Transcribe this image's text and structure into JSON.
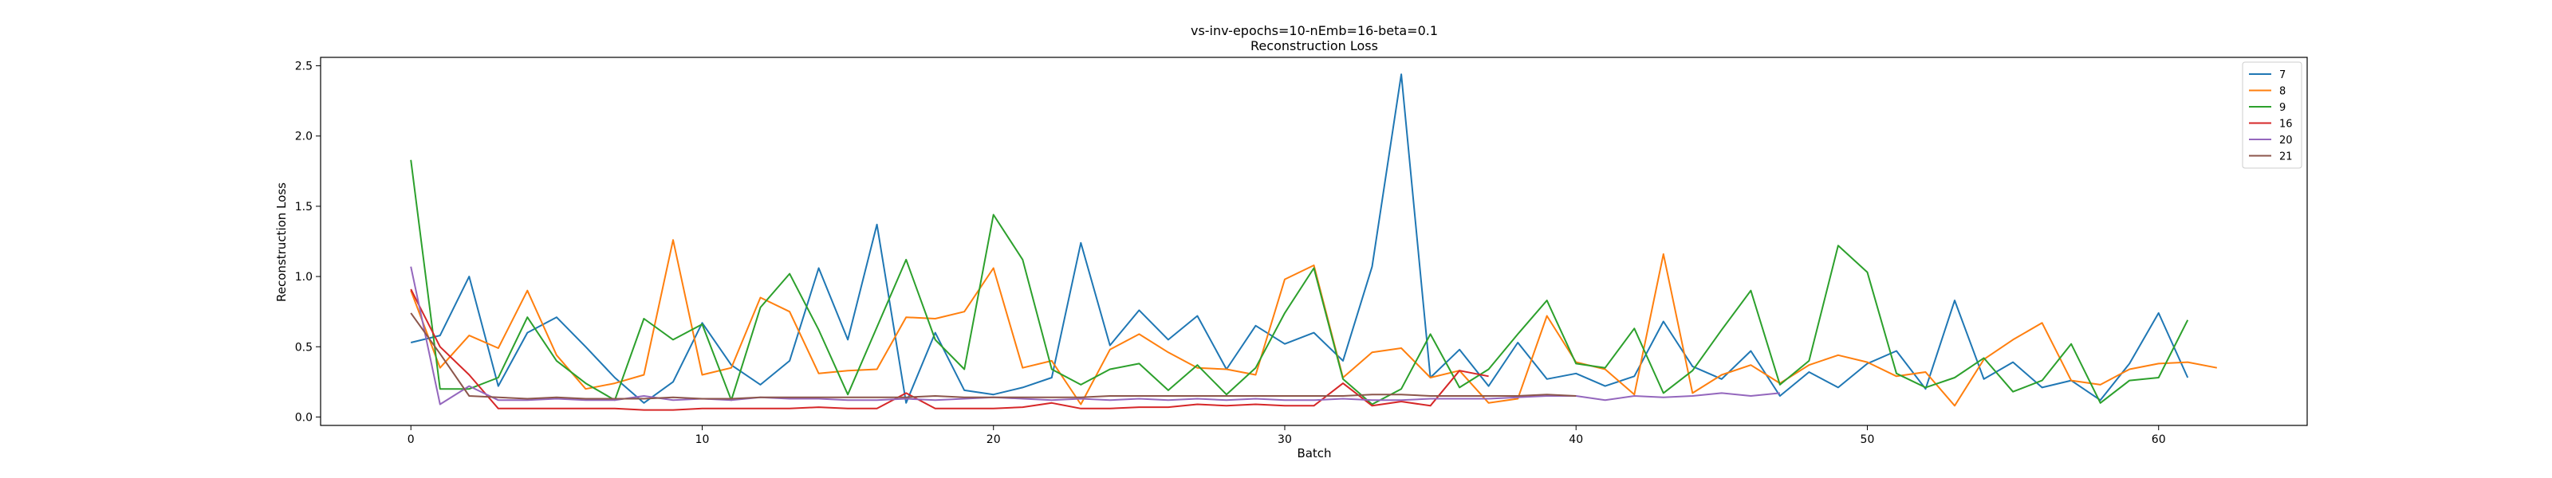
{
  "chart_data": {
    "type": "line",
    "title_line1": "vs-inv-epochs=10-nEmb=16-beta=0.1",
    "title_line2": "Reconstruction Loss",
    "xlabel": "Batch",
    "ylabel": "Reconstruction Loss",
    "xlim": [
      -3.1,
      65.1
    ],
    "ylim": [
      -0.06,
      2.56
    ],
    "xticks": [
      0,
      10,
      20,
      30,
      40,
      50,
      60
    ],
    "yticks": [
      0.0,
      0.5,
      1.0,
      1.5,
      2.0,
      2.5
    ],
    "ytick_labels": [
      "0.0",
      "0.5",
      "1.0",
      "1.5",
      "2.0",
      "2.5"
    ],
    "grid": false,
    "legend_position": "top-right",
    "series": [
      {
        "name": "7",
        "color": "#1f77b4",
        "values": [
          0.53,
          0.58,
          1.0,
          0.22,
          0.6,
          0.71,
          0.5,
          0.28,
          0.1,
          0.25,
          0.67,
          0.37,
          0.23,
          0.4,
          1.06,
          0.55,
          1.37,
          0.1,
          0.6,
          0.19,
          0.16,
          0.21,
          0.28,
          1.24,
          0.51,
          0.76,
          0.55,
          0.72,
          0.34,
          0.65,
          0.52,
          0.6,
          0.4,
          1.07,
          2.44,
          0.28,
          0.48,
          0.22,
          0.53,
          0.27,
          0.31,
          0.22,
          0.29,
          0.68,
          0.36,
          0.27,
          0.47,
          0.15,
          0.32,
          0.21,
          0.38,
          0.47,
          0.2,
          0.83,
          0.27,
          0.39,
          0.21,
          0.26,
          0.12,
          0.38,
          0.74,
          0.28
        ]
      },
      {
        "name": "8",
        "color": "#ff7f0e",
        "values": [
          0.9,
          0.35,
          0.58,
          0.49,
          0.9,
          0.44,
          0.2,
          0.24,
          0.3,
          1.26,
          0.3,
          0.35,
          0.85,
          0.75,
          0.31,
          0.33,
          0.34,
          0.71,
          0.7,
          0.75,
          1.06,
          0.35,
          0.4,
          0.09,
          0.48,
          0.59,
          0.46,
          0.35,
          0.34,
          0.3,
          0.98,
          1.08,
          0.28,
          0.46,
          0.49,
          0.28,
          0.33,
          0.1,
          0.13,
          0.72,
          0.39,
          0.34,
          0.16,
          1.16,
          0.17,
          0.3,
          0.37,
          0.24,
          0.37,
          0.44,
          0.39,
          0.29,
          0.32,
          0.08,
          0.41,
          0.55,
          0.67,
          0.26,
          0.23,
          0.34,
          0.38,
          0.39,
          0.35
        ]
      },
      {
        "name": "9",
        "color": "#2ca02c",
        "values": [
          1.83,
          0.2,
          0.2,
          0.28,
          0.71,
          0.4,
          0.24,
          0.12,
          0.7,
          0.55,
          0.66,
          0.12,
          0.78,
          1.02,
          0.62,
          0.16,
          0.64,
          1.12,
          0.55,
          0.34,
          1.44,
          1.12,
          0.34,
          0.23,
          0.34,
          0.38,
          0.19,
          0.37,
          0.16,
          0.35,
          0.74,
          1.06,
          0.27,
          0.09,
          0.2,
          0.59,
          0.21,
          0.34,
          0.59,
          0.83,
          0.38,
          0.35,
          0.63,
          0.17,
          0.33,
          0.62,
          0.9,
          0.23,
          0.4,
          1.22,
          1.03,
          0.31,
          0.21,
          0.28,
          0.42,
          0.18,
          0.26,
          0.52,
          0.1,
          0.26,
          0.28,
          0.69
        ]
      },
      {
        "name": "16",
        "color": "#d62728",
        "values": [
          0.91,
          0.5,
          0.3,
          0.06,
          0.06,
          0.06,
          0.06,
          0.06,
          0.05,
          0.05,
          0.06,
          0.06,
          0.06,
          0.06,
          0.07,
          0.06,
          0.06,
          0.17,
          0.06,
          0.06,
          0.06,
          0.07,
          0.1,
          0.06,
          0.06,
          0.07,
          0.07,
          0.09,
          0.08,
          0.09,
          0.08,
          0.08,
          0.24,
          0.08,
          0.11,
          0.08,
          0.33,
          0.29
        ]
      },
      {
        "name": "20",
        "color": "#9467bd",
        "values": [
          1.07,
          0.09,
          0.22,
          0.12,
          0.12,
          0.13,
          0.12,
          0.12,
          0.15,
          0.12,
          0.13,
          0.12,
          0.14,
          0.13,
          0.13,
          0.12,
          0.12,
          0.13,
          0.12,
          0.13,
          0.14,
          0.13,
          0.12,
          0.13,
          0.12,
          0.13,
          0.12,
          0.13,
          0.12,
          0.13,
          0.12,
          0.12,
          0.13,
          0.12,
          0.12,
          0.13,
          0.13,
          0.13,
          0.14,
          0.15,
          0.15,
          0.12,
          0.15,
          0.14,
          0.15,
          0.17,
          0.15,
          0.17
        ]
      },
      {
        "name": "21",
        "color": "#8c564b",
        "values": [
          0.74,
          0.45,
          0.15,
          0.14,
          0.13,
          0.14,
          0.13,
          0.13,
          0.13,
          0.14,
          0.13,
          0.13,
          0.14,
          0.14,
          0.14,
          0.14,
          0.14,
          0.14,
          0.15,
          0.14,
          0.14,
          0.14,
          0.14,
          0.14,
          0.15,
          0.15,
          0.15,
          0.15,
          0.15,
          0.15,
          0.15,
          0.15,
          0.15,
          0.16,
          0.16,
          0.15,
          0.15,
          0.15,
          0.15,
          0.16,
          0.15
        ]
      }
    ]
  }
}
